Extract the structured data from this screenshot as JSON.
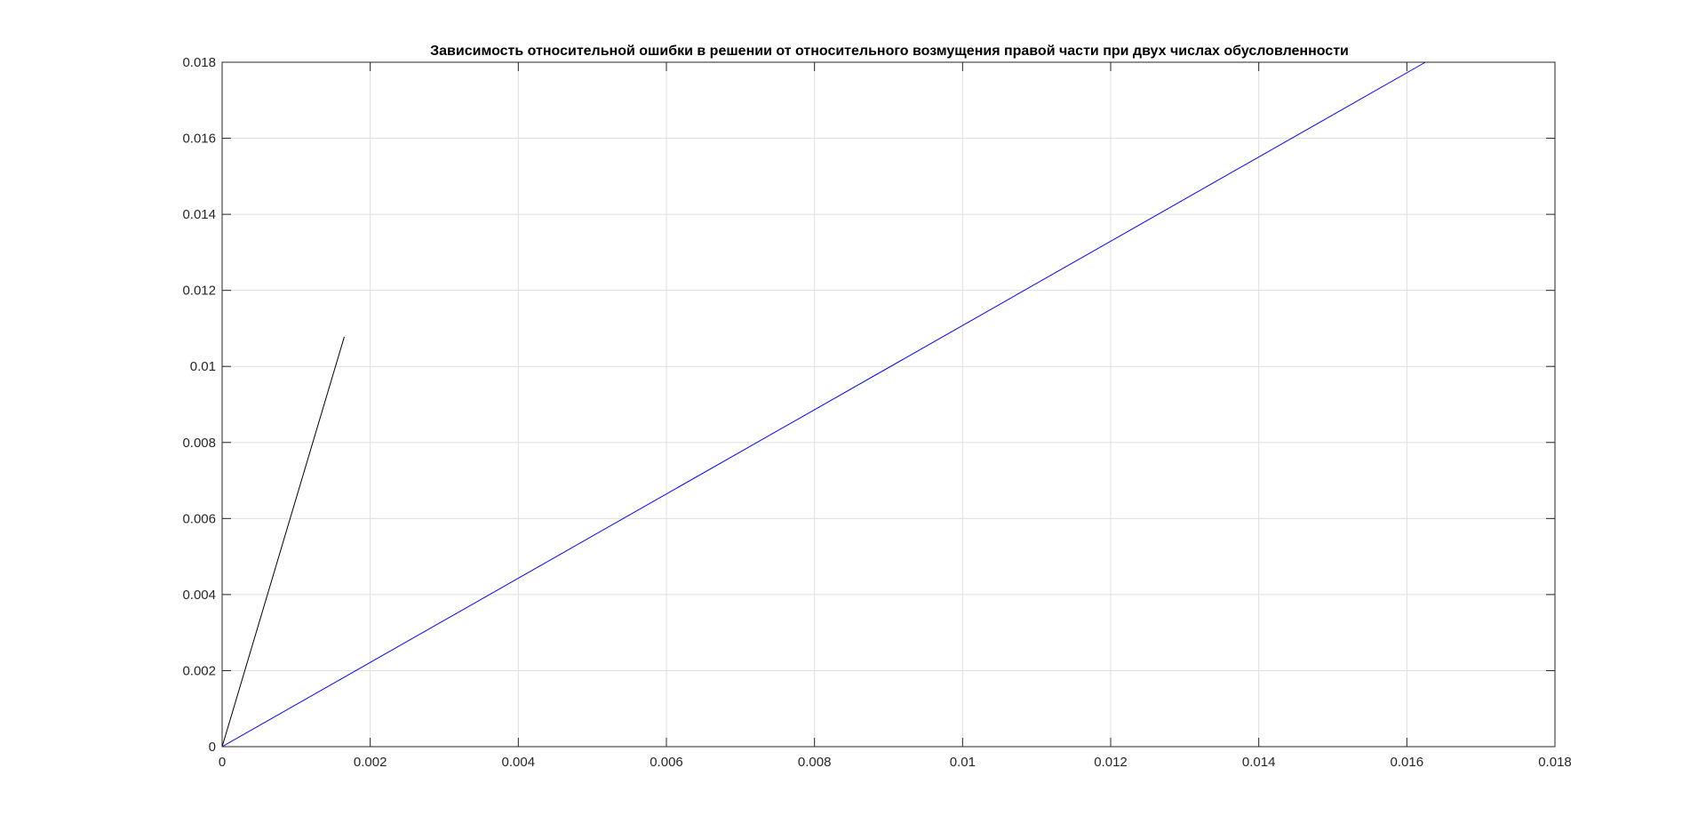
{
  "window": {
    "title": ""
  },
  "chart_data": {
    "type": "line",
    "title": "Зависимость относительной ошибки в решении от относительного возмущения правой части при двух числах обусловленности",
    "xlabel": "",
    "ylabel": "",
    "xlim": [
      0,
      0.018
    ],
    "ylim": [
      0,
      0.018
    ],
    "x_ticks": [
      0,
      0.002,
      0.004,
      0.006,
      0.008,
      0.01,
      0.012,
      0.014,
      0.016,
      0.018
    ],
    "y_ticks": [
      0,
      0.002,
      0.004,
      0.006,
      0.008,
      0.01,
      0.012,
      0.014,
      0.016,
      0.018
    ],
    "x_tick_labels": [
      "0",
      "0.002",
      "0.004",
      "0.006",
      "0.008",
      "0.01",
      "0.012",
      "0.014",
      "0.016",
      "0.018"
    ],
    "y_tick_labels": [
      "0",
      "0.002",
      "0.004",
      "0.006",
      "0.008",
      "0.01",
      "0.012",
      "0.014",
      "0.016",
      "0.018"
    ],
    "grid": true,
    "box": true,
    "legend": "none",
    "series": [
      {
        "color": "#000000",
        "x": [
          0,
          0.00165
        ],
        "y": [
          0,
          0.01078
        ]
      },
      {
        "color": "#0000ff",
        "x": [
          0,
          0.01625
        ],
        "y": [
          0,
          0.018
        ]
      }
    ],
    "colors": {
      "axes": "#262626",
      "grid": "#dfdfdf",
      "background": "#ffffff"
    }
  }
}
